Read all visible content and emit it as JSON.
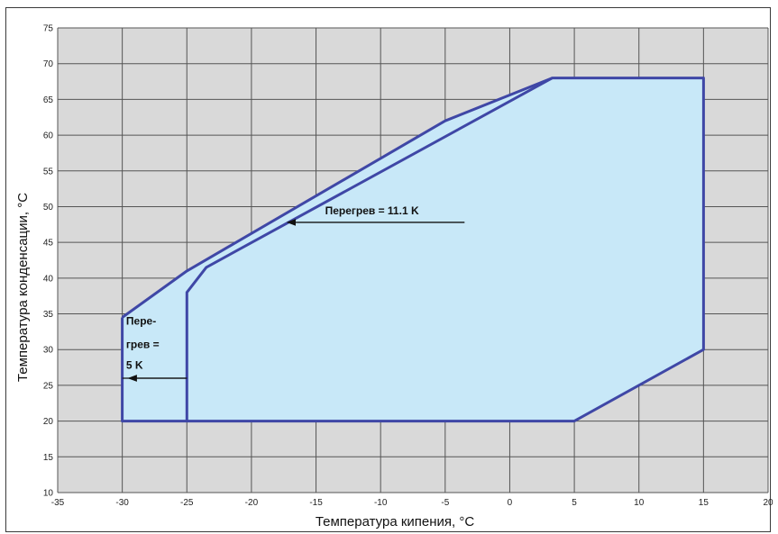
{
  "chart_data": {
    "type": "area",
    "title": "",
    "xlabel": "Температура кипения, °C",
    "ylabel": "Температура конденсации, °C",
    "xlim": [
      -35,
      20
    ],
    "ylim": [
      10,
      75
    ],
    "xticks": [
      -35,
      -30,
      -25,
      -20,
      -15,
      -10,
      -5,
      0,
      5,
      10,
      15,
      20
    ],
    "yticks": [
      10,
      15,
      20,
      25,
      30,
      35,
      40,
      45,
      50,
      55,
      60,
      65,
      70,
      75
    ],
    "grid": true,
    "series": [
      {
        "role": "envelope_superheat_5K",
        "fill": "#c8e8f8",
        "x": [
          -30,
          -25,
          -5,
          3.3,
          15,
          15,
          5,
          -30,
          -30
        ],
        "y": [
          34.5,
          41,
          62,
          68,
          68,
          30,
          20,
          20,
          34.5
        ]
      },
      {
        "role": "envelope_superheat_11_1K",
        "x": [
          -25,
          -25,
          -23.5,
          3.3
        ],
        "y": [
          20,
          38,
          41.5,
          68
        ]
      }
    ],
    "annotations": [
      {
        "id": "superheat-11",
        "text": "Перегрев  = 11.1 K",
        "text_x": -14.3,
        "text_y": 48.9,
        "underline": [
          -16.5,
          -3.5,
          47.8
        ],
        "arrow_from": [
          -16.5,
          47.8
        ],
        "arrow_to": [
          -17.2,
          47.8
        ]
      },
      {
        "id": "superheat-5",
        "lines": [
          "Пере-",
          "грев =",
          "5 K"
        ],
        "text_x": -29.7,
        "text_y": [
          33.5,
          30.2,
          27.3
        ],
        "underline": [
          -30,
          -25,
          26
        ],
        "arrow_from": [
          -25,
          26
        ],
        "arrow_to": [
          -29.5,
          26
        ]
      }
    ]
  },
  "colors": {
    "outline": "#3f47a6",
    "fill": "#c8e8f8",
    "grid": "#555555",
    "plot_bg": "#d9d9d9"
  }
}
